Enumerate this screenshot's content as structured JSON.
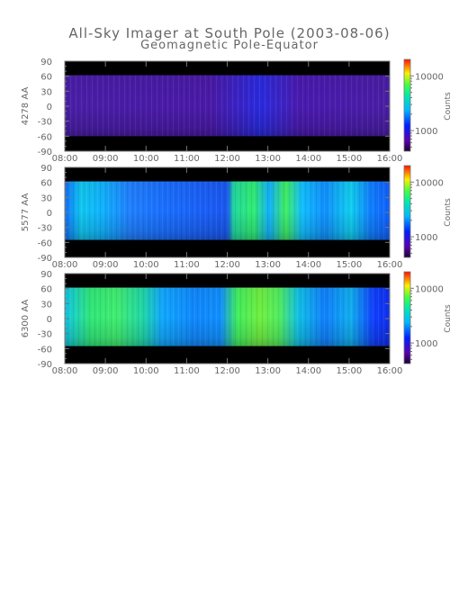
{
  "chart_data": {
    "type": "heatmap",
    "title": "All-Sky Imager at South Pole (2003-08-06)",
    "subtitle": "Geomagnetic Pole-Equator",
    "panels": [
      {
        "ylabel": "4278 AA",
        "ylim": [
          -90,
          90
        ],
        "yticks": [
          "90",
          "60",
          "30",
          "0",
          "-30",
          "-60",
          "-90"
        ],
        "xticks": [
          "08:00",
          "09:00",
          "10:00",
          "11:00",
          "12:00",
          "13:00",
          "14:00",
          "15:00",
          "16:00"
        ],
        "colorbar_label": "Counts",
        "colorbar_ticks": [
          "10000",
          "1000"
        ],
        "data_rows": [
          -60,
          62
        ]
      },
      {
        "ylabel": "5577 AA",
        "ylim": [
          -90,
          90
        ],
        "yticks": [
          "90",
          "60",
          "30",
          "0",
          "-30",
          "-60",
          "-90"
        ],
        "xticks": [
          "08:00",
          "09:00",
          "10:00",
          "11:00",
          "12:00",
          "13:00",
          "14:00",
          "15:00",
          "16:00"
        ],
        "colorbar_label": "Counts",
        "colorbar_ticks": [
          "10000",
          "1000"
        ],
        "data_rows": [
          -55,
          62
        ]
      },
      {
        "ylabel": "6300 AA",
        "ylim": [
          -90,
          90
        ],
        "yticks": [
          "90",
          "60",
          "30",
          "0",
          "-30",
          "-60",
          "-90"
        ],
        "xticks": [
          "08:00",
          "09:00",
          "10:00",
          "11:00",
          "12:00",
          "13:00",
          "14:00",
          "15:00",
          "16:00"
        ],
        "colorbar_label": "Counts",
        "colorbar_ticks": [
          "10000",
          "1000"
        ],
        "data_rows": [
          -55,
          62
        ]
      }
    ]
  }
}
